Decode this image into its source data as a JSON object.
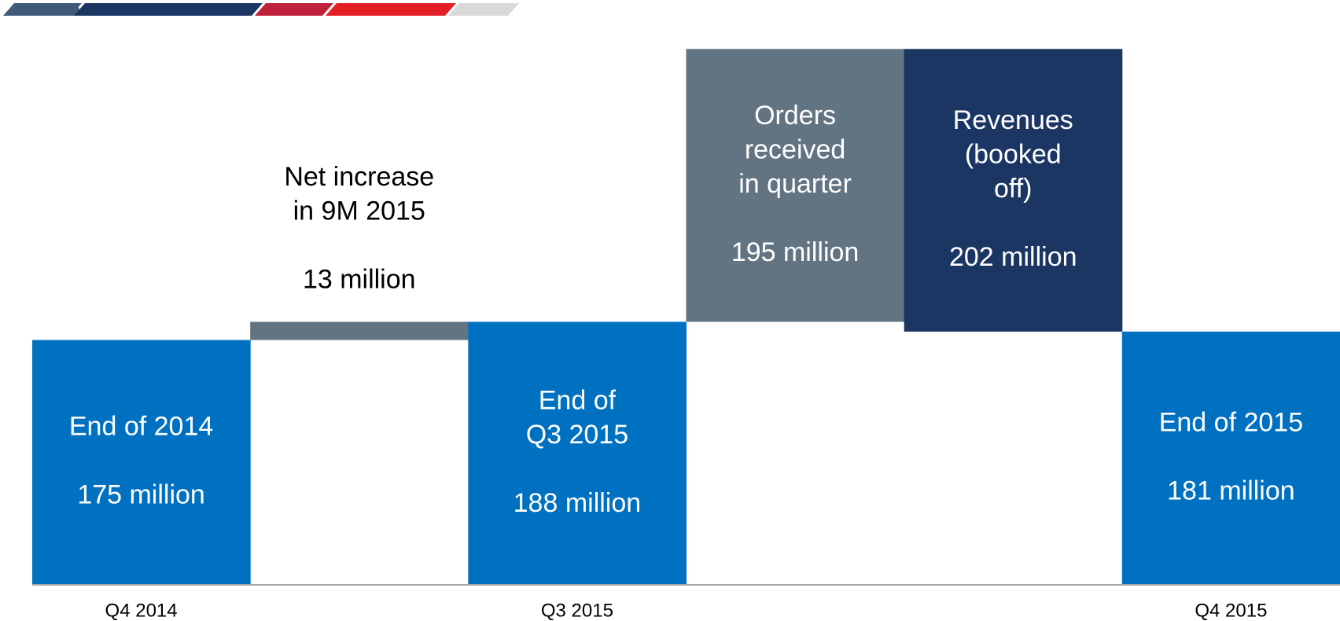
{
  "chart_data": {
    "type": "waterfall",
    "categories": [
      "Q4 2014",
      null,
      "Q3 2015",
      null,
      null,
      "Q4 2015"
    ],
    "labels": [
      [
        "End of 2014"
      ],
      [
        "Net increase",
        "in 9M 2015"
      ],
      [
        "End of",
        "Q3 2015"
      ],
      [
        "Orders",
        "received",
        "in quarter"
      ],
      [
        "Revenues",
        "(booked",
        "off)"
      ],
      [
        "End of 2015"
      ]
    ],
    "values": [
      175,
      13,
      188,
      195,
      -202,
      181
    ],
    "value_labels": [
      "175 million",
      "13 million",
      "188 million",
      "195 million",
      "202 million",
      "181 million"
    ],
    "measure": [
      "absolute",
      "relative",
      "absolute",
      "relative",
      "relative",
      "absolute"
    ],
    "colors": [
      "#0070c0",
      "#627482",
      "#0070c0",
      "#627482",
      "#1c3664",
      "#0070c0"
    ],
    "ylim": [
      0,
      418
    ]
  }
}
